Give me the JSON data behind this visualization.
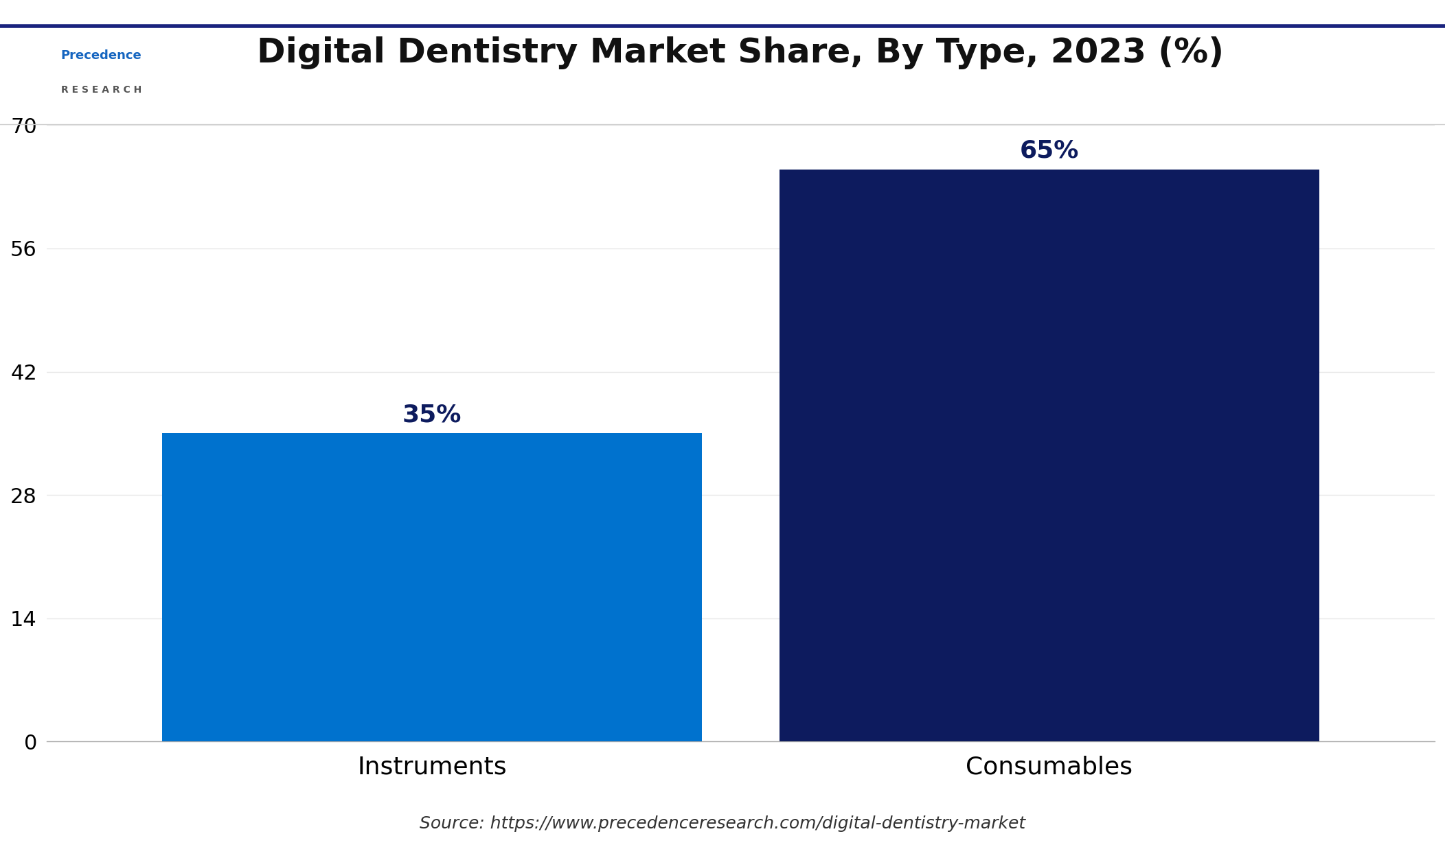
{
  "title": "Digital Dentistry Market Share, By Type, 2023 (%)",
  "categories": [
    "Instruments",
    "Consumables"
  ],
  "values": [
    35,
    65
  ],
  "bar_colors": [
    "#0072CE",
    "#0D1B5E"
  ],
  "bar_labels": [
    "35%",
    "65%"
  ],
  "yticks": [
    0,
    14,
    28,
    42,
    56,
    70
  ],
  "ylim": [
    0,
    75
  ],
  "source_text": "Source: https://www.precedenceresearch.com/digital-dentistry-market",
  "background_color": "#ffffff",
  "grid_color": "#e8e8e8",
  "title_fontsize": 36,
  "label_fontsize": 26,
  "tick_fontsize": 22,
  "source_fontsize": 18,
  "annotation_fontsize": 26,
  "bar_width": 0.35,
  "border_color": "#1a237e"
}
